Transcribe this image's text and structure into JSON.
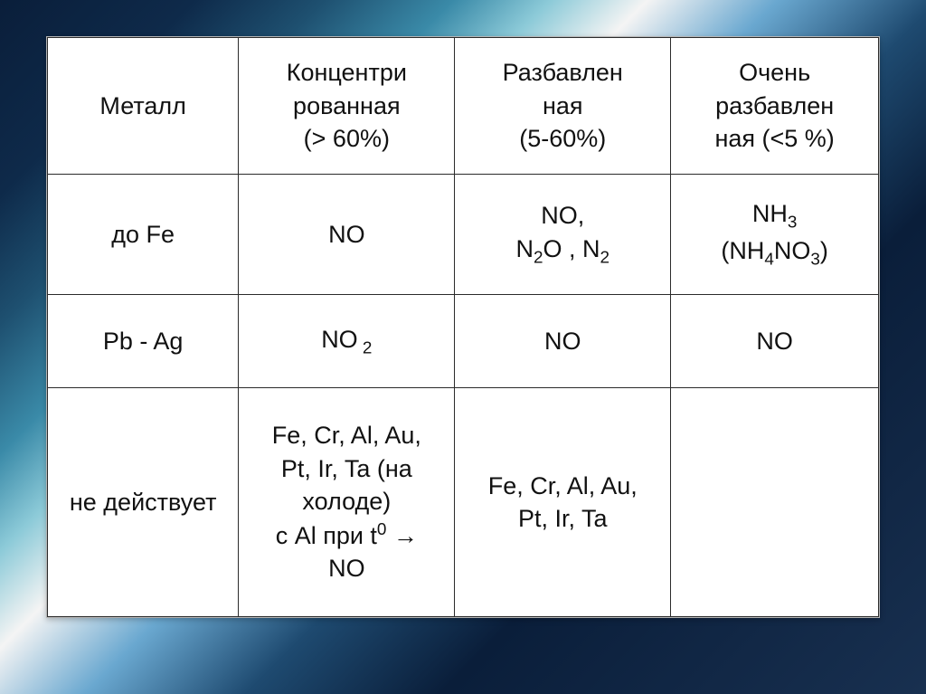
{
  "table": {
    "columns": 4,
    "col_widths_pct": [
      23,
      26,
      26,
      25
    ],
    "border_color": "#2b2b2b",
    "font_size_pt": 20,
    "text_color": "#111111",
    "background_color": "#ffffff",
    "header": {
      "c0": "Металл",
      "c1_l1": "Концентри",
      "c1_l2": "рованная",
      "c1_l3": "(> 60%)",
      "c2_l1": "Разбавлен",
      "c2_l2": "ная",
      "c2_l3": "(5-60%)",
      "c3_l1": "Очень",
      "c3_l2": "разбавлен",
      "c3_l3": "ная (<5 %)"
    },
    "rows": [
      {
        "c0": "до Fe",
        "c1": "NO",
        "c2_l1a": "NO,",
        "c2_l2a": "N",
        "c2_l2b": "2",
        "c2_l2c": "O ,  N",
        "c2_l2d": "2",
        "c3_l1a": "NH",
        "c3_l1b": "3",
        "c3_l2a": "(NH",
        "c3_l2b": "4",
        "c3_l2c": "NO",
        "c3_l2d": "3",
        "c3_l2e": ")"
      },
      {
        "c0": "Pb - Ag",
        "c1a": "NO",
        "c1b": " 2",
        "c2": "NO",
        "c3": "NO"
      },
      {
        "c0": "не действует",
        "c1_l1": "Fe, Cr, Al, Au,",
        "c1_l2": "Pt, Ir, Ta (на",
        "c1_l3": "холоде)",
        "c1_l4a": "с Al при  t",
        "c1_l4b": "0",
        "c1_l4c": " → ",
        "c1_l5": "NO",
        "c2_l1": "Fe, Cr, Al, Au,",
        "c2_l2": "Pt, Ir, Ta",
        "c3": ""
      }
    ]
  },
  "page_background_gradient_stops": [
    "#0a1e3a",
    "#0e2a4a",
    "#1e5070",
    "#3a8aa8",
    "#8ccad8",
    "#f4f4f4",
    "#6aa8d0",
    "#1e4a70",
    "#0a1e3a",
    "#183050"
  ]
}
